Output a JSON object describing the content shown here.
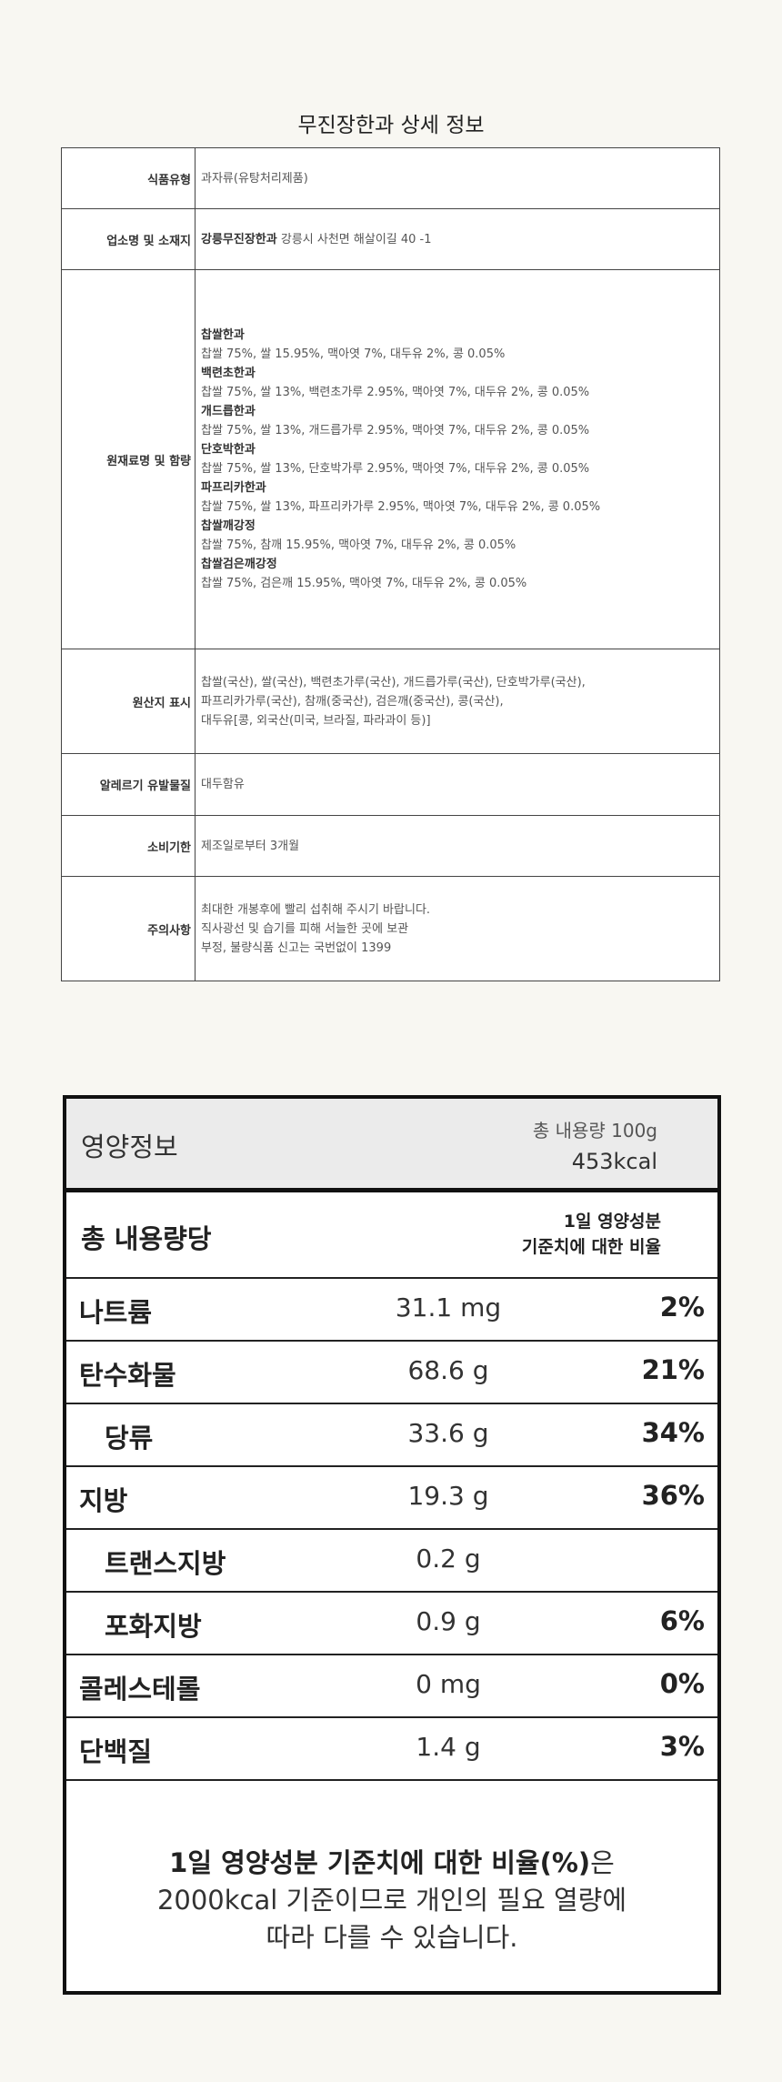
{
  "title": "무진장한과 상세 정보",
  "info": [
    {
      "key": "식품유형",
      "value": "과자류(유탕처리제품)"
    },
    {
      "key": "업소명 및 소재지",
      "company": "강릉무진장한과",
      "value": "강릉시 사천면 해살이길 40 -1"
    },
    {
      "key": "원재료명 및 함량",
      "products": [
        {
          "name": "찹쌀한과",
          "content": "찹쌀 75%, 쌀 15.95%, 맥아엿 7%, 대두유 2%, 콩 0.05%"
        },
        {
          "name": "백련초한과",
          "content": "찹쌀 75%, 쌀 13%, 백련초가루 2.95%, 맥아엿 7%, 대두유 2%, 콩 0.05%"
        },
        {
          "name": "개드릅한과",
          "content": "찹쌀 75%, 쌀 13%, 개드릅가루 2.95%, 맥아엿 7%, 대두유 2%, 콩 0.05%"
        },
        {
          "name": "단호박한과",
          "content": "찹쌀 75%, 쌀 13%, 단호박가루 2.95%, 맥아엿 7%, 대두유 2%, 콩 0.05%"
        },
        {
          "name": "파프리카한과",
          "content": "찹쌀 75%, 쌀 13%, 파프리카가루 2.95%, 맥아엿 7%, 대두유 2%, 콩 0.05%"
        },
        {
          "name": "찹쌀깨강정",
          "content": "찹쌀 75%, 참깨 15.95%, 맥아엿 7%, 대두유 2%, 콩 0.05%"
        },
        {
          "name": "찹쌀검은깨강정",
          "content": "찹쌀 75%, 검은깨 15.95%, 맥아엿 7%, 대두유 2%, 콩 0.05%"
        }
      ]
    },
    {
      "key": "원산지 표시",
      "lines": [
        "찹쌀(국산), 쌀(국산), 백련초가루(국산), 개드릅가루(국산), 단호박가루(국산),",
        "파프리카가루(국산),  참깨(중국산), 검은깨(중국산), 콩(국산),",
        "대두유[콩, 외국산(미국, 브라질, 파라과이 등)]"
      ]
    },
    {
      "key": "알레르기 유발물질",
      "value": "대두함유"
    },
    {
      "key": "소비기한",
      "value": "제조일로부터 3개월"
    },
    {
      "key": "주의사항",
      "lines": [
        "최대한 개봉후에 빨리 섭취해 주시기 바랍니다.",
        "직사광선 및 습기를 피해 서늘한 곳에 보관",
        "부정, 불량식품 신고는 국번없이 1399"
      ]
    }
  ],
  "nutrition": {
    "title": "영양정보",
    "total": "총 내용량 100g",
    "kcal": "453kcal",
    "per": "총 내용량당",
    "ratio_1": "1일 영양성분",
    "ratio_2": "기준치에 대한 비율",
    "rows": [
      {
        "name": "나트륨",
        "amount": "31.1 mg",
        "pct": "2%"
      },
      {
        "name": "탄수화물",
        "amount": "68.6 g",
        "pct": "21%"
      },
      {
        "name": "당류",
        "amount": "33.6 g",
        "pct": "34%"
      },
      {
        "name": "지방",
        "amount": "19.3 g",
        "pct": "36%"
      },
      {
        "name": "트랜스지방",
        "amount": "0.2 g",
        "pct": ""
      },
      {
        "name": "포화지방",
        "amount": "0.9 g",
        "pct": "6%"
      },
      {
        "name": "콜레스테롤",
        "amount": "0 mg",
        "pct": "0%"
      },
      {
        "name": "단백질",
        "amount": "1.4 g",
        "pct": "3%"
      }
    ],
    "note_bold": "1일 영양성분 기준치에 대한 비율(%)",
    "note_1": "은",
    "note_2": "2000kcal 기준이므로 개인의 필요 열량에",
    "note_3": "따라 다를 수 있습니다."
  }
}
